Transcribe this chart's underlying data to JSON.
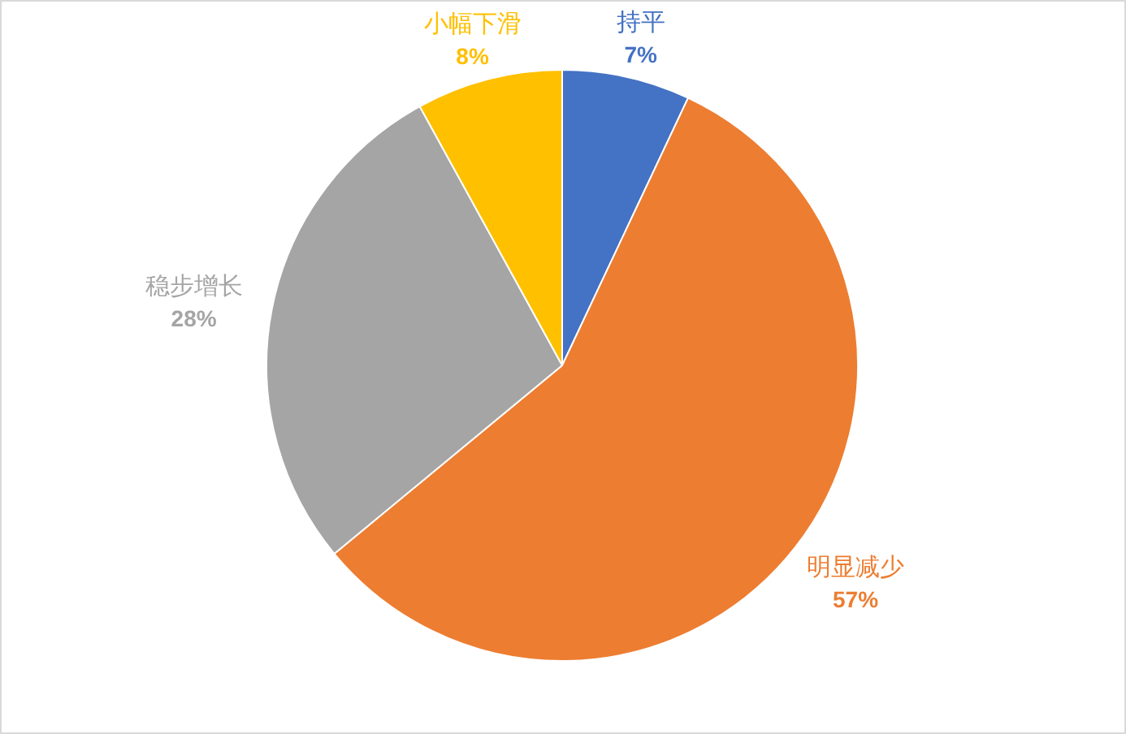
{
  "chart_data": {
    "type": "pie",
    "categories": [
      "持平",
      "明显减少",
      "稳步增长",
      "小幅下滑"
    ],
    "values": [
      7,
      57,
      28,
      8
    ],
    "colors": [
      "#4472c4",
      "#ed7d31",
      "#a5a5a5",
      "#ffc000"
    ],
    "value_labels": [
      "7%",
      "57%",
      "28%",
      "8%"
    ]
  }
}
